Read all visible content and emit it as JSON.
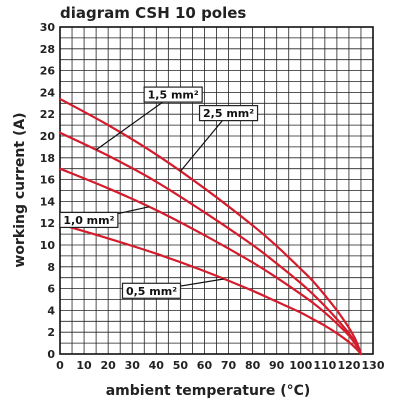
{
  "chart_data": {
    "type": "line",
    "title": "diagram CSH 10 poles",
    "xlabel": "ambient temperature (°C)",
    "ylabel": "working current (A)",
    "xlim": [
      0,
      130
    ],
    "ylim": [
      0,
      30
    ],
    "x_ticks": [
      "0",
      "10",
      "20",
      "30",
      "40",
      "50",
      "60",
      "70",
      "80",
      "90",
      "100",
      "110",
      "120",
      "130"
    ],
    "y_ticks": [
      "0",
      "2",
      "4",
      "6",
      "8",
      "10",
      "12",
      "14",
      "16",
      "18",
      "20",
      "22",
      "24",
      "26",
      "28",
      "30"
    ],
    "grid": true,
    "line_color": "#d41c2c",
    "series": [
      {
        "name": "1,5 mm²",
        "x": [
          0,
          20,
          40,
          60,
          80,
          90,
          100,
          105,
          110,
          115,
          120,
          123,
          125
        ],
        "y": [
          20.3,
          18.2,
          15.8,
          13.0,
          10.0,
          8.3,
          6.5,
          5.5,
          4.4,
          3.2,
          1.9,
          0.9,
          0
        ]
      },
      {
        "name": "2,5 mm²",
        "x": [
          0,
          20,
          40,
          60,
          80,
          90,
          100,
          105,
          110,
          115,
          120,
          123,
          125
        ],
        "y": [
          23.4,
          21.0,
          18.3,
          15.2,
          11.8,
          9.9,
          7.8,
          6.7,
          5.4,
          4.0,
          2.4,
          1.2,
          0
        ]
      },
      {
        "name": "1,0 mm²",
        "x": [
          0,
          20,
          40,
          60,
          80,
          90,
          100,
          105,
          110,
          115,
          120,
          123,
          125
        ],
        "y": [
          17.0,
          15.2,
          13.2,
          10.9,
          8.4,
          7.0,
          5.5,
          4.7,
          3.8,
          2.8,
          1.7,
          0.8,
          0
        ]
      },
      {
        "name": "0,5 mm²",
        "x": [
          0,
          20,
          40,
          60,
          80,
          90,
          100,
          105,
          110,
          115,
          120,
          123,
          125
        ],
        "y": [
          11.9,
          10.6,
          9.2,
          7.6,
          5.8,
          4.8,
          3.8,
          3.2,
          2.6,
          1.9,
          1.1,
          0.5,
          0
        ]
      }
    ]
  }
}
